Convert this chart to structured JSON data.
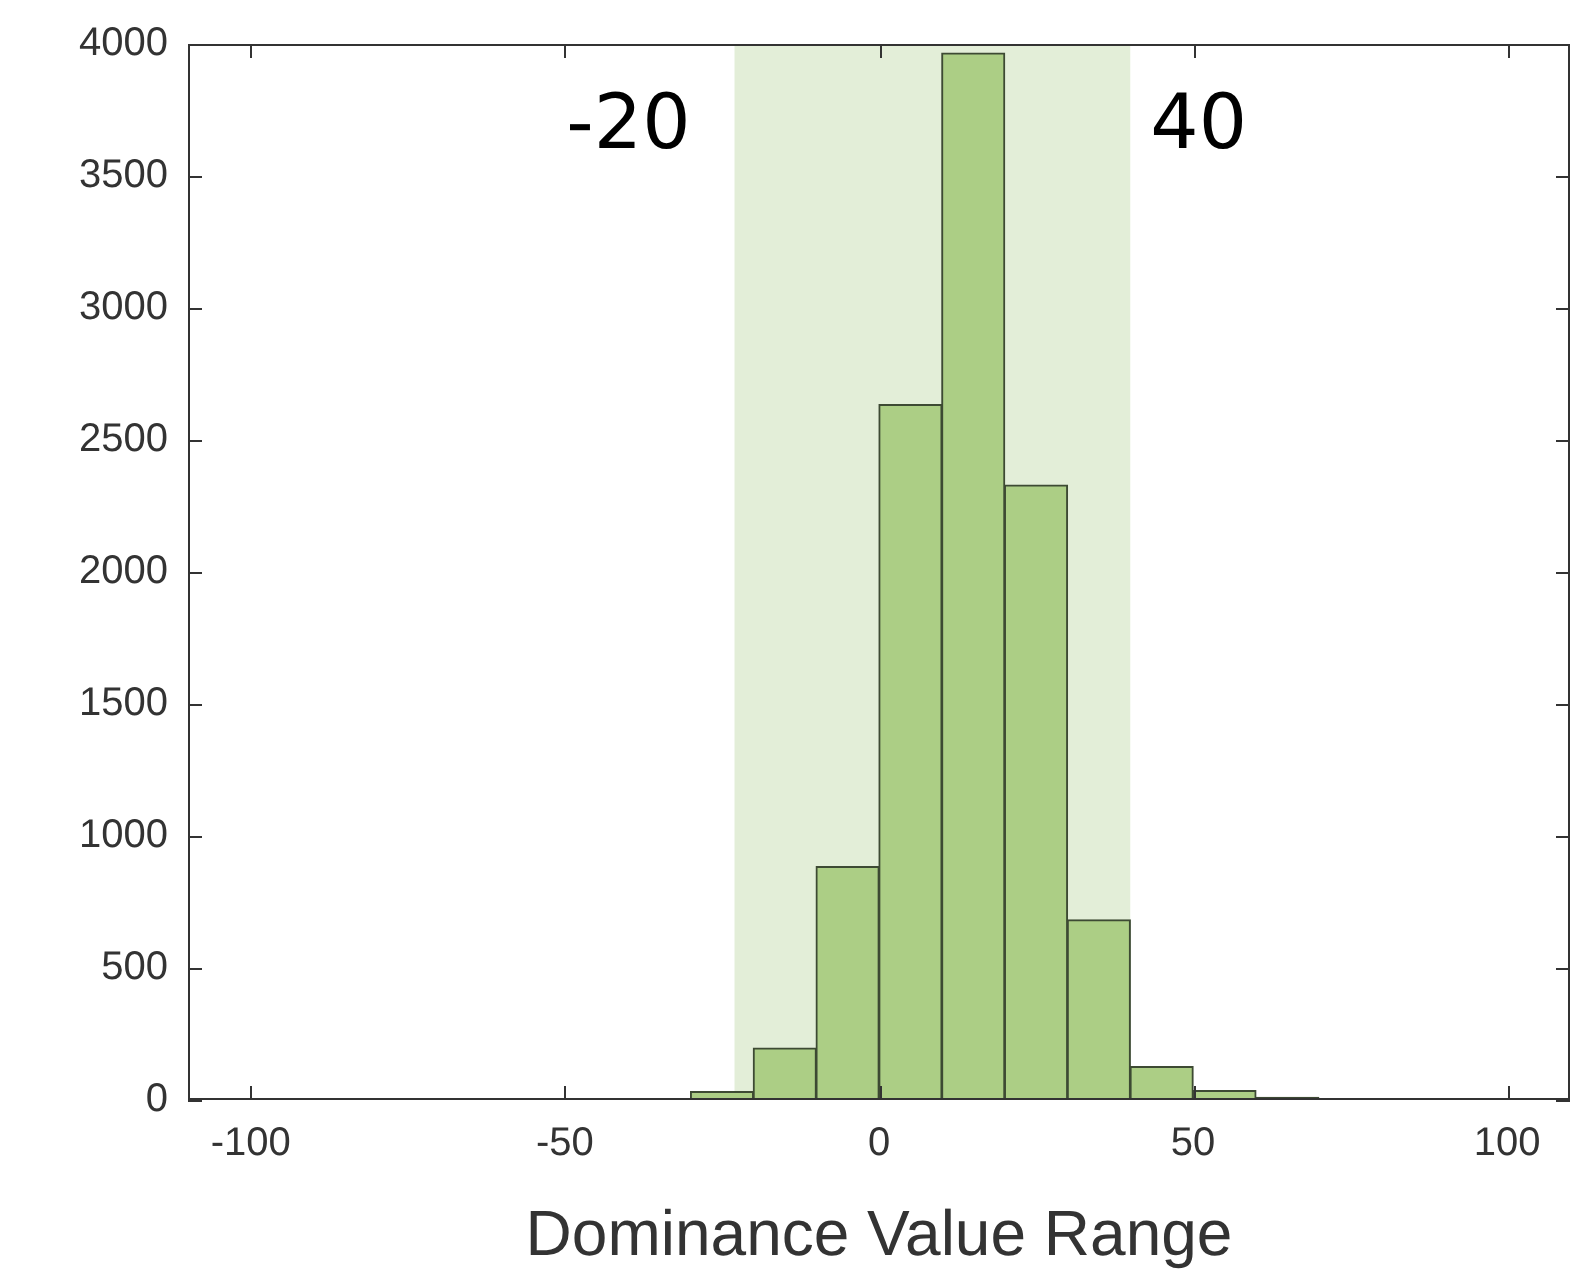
{
  "chart_data": {
    "type": "histogram",
    "xlabel": "Dominance Value Range",
    "bins": [
      -30,
      -20,
      -10,
      0,
      10,
      20,
      30,
      40,
      50,
      60,
      70
    ],
    "values": [
      32,
      196,
      884,
      2634,
      3965,
      2329,
      682,
      126,
      35,
      10
    ],
    "color": "#acce85",
    "xlim": [
      -110,
      110
    ],
    "xticks": [
      -100,
      -50,
      0,
      50,
      100
    ],
    "ylim": [
      0,
      4000
    ],
    "yticks": [
      0,
      500,
      1000,
      1500,
      2000,
      2500,
      3000,
      3500,
      4000
    ],
    "grid": false,
    "legend": false,
    "bands": [
      {
        "axis": "x",
        "from": -23,
        "to": 40,
        "color": "#e3eed8"
      }
    ],
    "annotations": [
      "-20",
      "40"
    ]
  }
}
